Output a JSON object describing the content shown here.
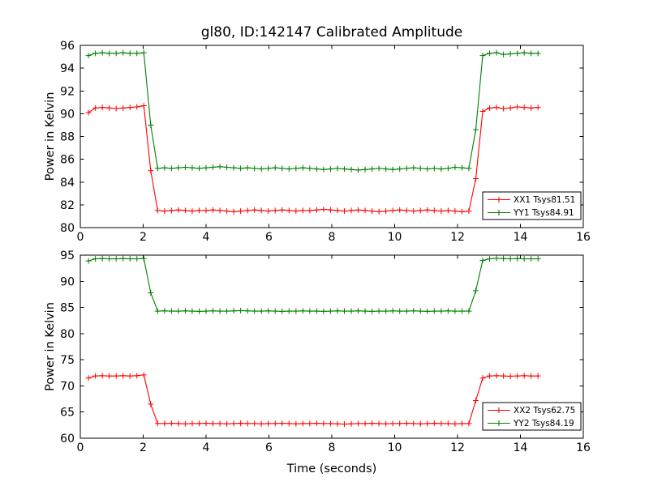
{
  "figure": {
    "background": "#ffffff",
    "frame_color": "#000000",
    "accent_red": "#ff0000",
    "accent_green": "#008000"
  },
  "chart_data": [
    {
      "type": "line",
      "title": "gl80, ID:142147 Calibrated Amplitude",
      "xlabel": "",
      "ylabel": "Power in Kelvin",
      "xlim": [
        0,
        16
      ],
      "ylim": [
        80,
        96
      ],
      "xticks": [
        0,
        2,
        4,
        6,
        8,
        10,
        12,
        14,
        16
      ],
      "yticks": [
        80,
        82,
        84,
        86,
        88,
        90,
        92,
        94,
        96
      ],
      "xtick_labels": [
        "0",
        "2",
        "4",
        "6",
        "8",
        "10",
        "12",
        "14",
        "16"
      ],
      "ytick_labels": [
        "80",
        "82",
        "84",
        "86",
        "88",
        "90",
        "92",
        "94",
        "96"
      ],
      "grid": false,
      "legend_position": "lower right",
      "x": [
        0.26,
        0.48,
        0.7,
        0.92,
        1.14,
        1.36,
        1.58,
        1.8,
        2.02,
        2.24,
        2.46,
        2.68,
        2.9,
        3.12,
        3.34,
        3.56,
        3.78,
        4,
        4.22,
        4.44,
        4.66,
        4.88,
        5.1,
        5.32,
        5.54,
        5.76,
        5.98,
        6.2,
        6.42,
        6.64,
        6.86,
        7.08,
        7.3,
        7.52,
        7.74,
        7.96,
        8.18,
        8.4,
        8.62,
        8.84,
        9.06,
        9.28,
        9.5,
        9.72,
        9.94,
        10.16,
        10.38,
        10.6,
        10.82,
        11.04,
        11.26,
        11.48,
        11.7,
        11.92,
        12.14,
        12.36,
        12.58,
        12.8,
        13.02,
        13.24,
        13.46,
        13.68,
        13.9,
        14.12,
        14.34,
        14.56
      ],
      "series": [
        {
          "id": "xx1",
          "name": "XX1 Tsys81.51",
          "color": "#ff0000",
          "marker": "+",
          "values": [
            90.1,
            90.5,
            90.55,
            90.5,
            90.45,
            90.5,
            90.55,
            90.6,
            90.7,
            85.0,
            81.5,
            81.45,
            81.5,
            81.55,
            81.5,
            81.45,
            81.5,
            81.5,
            81.55,
            81.5,
            81.45,
            81.4,
            81.45,
            81.5,
            81.55,
            81.5,
            81.45,
            81.5,
            81.55,
            81.5,
            81.45,
            81.5,
            81.5,
            81.55,
            81.6,
            81.55,
            81.5,
            81.45,
            81.5,
            81.55,
            81.5,
            81.45,
            81.4,
            81.45,
            81.5,
            81.55,
            81.5,
            81.45,
            81.5,
            81.55,
            81.5,
            81.45,
            81.5,
            81.45,
            81.4,
            81.45,
            84.3,
            90.2,
            90.5,
            90.55,
            90.45,
            90.5,
            90.6,
            90.55,
            90.5,
            90.55
          ]
        },
        {
          "id": "yy1",
          "name": "YY1 Tsys84.91",
          "color": "#008000",
          "marker": "+",
          "values": [
            95.1,
            95.3,
            95.35,
            95.3,
            95.3,
            95.35,
            95.3,
            95.3,
            95.35,
            89.0,
            85.2,
            85.25,
            85.2,
            85.25,
            85.3,
            85.25,
            85.2,
            85.25,
            85.3,
            85.35,
            85.3,
            85.25,
            85.2,
            85.25,
            85.2,
            85.15,
            85.2,
            85.25,
            85.2,
            85.15,
            85.2,
            85.25,
            85.2,
            85.15,
            85.1,
            85.15,
            85.2,
            85.15,
            85.1,
            85.05,
            85.1,
            85.15,
            85.2,
            85.15,
            85.1,
            85.15,
            85.2,
            85.25,
            85.2,
            85.15,
            85.2,
            85.15,
            85.2,
            85.3,
            85.25,
            85.2,
            88.6,
            95.1,
            95.3,
            95.35,
            95.2,
            95.25,
            95.3,
            95.35,
            95.3,
            95.3
          ]
        }
      ]
    },
    {
      "type": "line",
      "title": "",
      "xlabel": "Time (seconds)",
      "ylabel": "Power in Kelvin",
      "xlim": [
        0,
        16
      ],
      "ylim": [
        60,
        95
      ],
      "xticks": [
        0,
        2,
        4,
        6,
        8,
        10,
        12,
        14,
        16
      ],
      "yticks": [
        60,
        65,
        70,
        75,
        80,
        85,
        90,
        95
      ],
      "xtick_labels": [
        "0",
        "2",
        "4",
        "6",
        "8",
        "10",
        "12",
        "14",
        "16"
      ],
      "ytick_labels": [
        "60",
        "65",
        "70",
        "75",
        "80",
        "85",
        "90",
        "95"
      ],
      "grid": false,
      "legend_position": "lower right",
      "x": [
        0.26,
        0.48,
        0.7,
        0.92,
        1.14,
        1.36,
        1.58,
        1.8,
        2.02,
        2.24,
        2.46,
        2.68,
        2.9,
        3.12,
        3.34,
        3.56,
        3.78,
        4,
        4.22,
        4.44,
        4.66,
        4.88,
        5.1,
        5.32,
        5.54,
        5.76,
        5.98,
        6.2,
        6.42,
        6.64,
        6.86,
        7.08,
        7.3,
        7.52,
        7.74,
        7.96,
        8.18,
        8.4,
        8.62,
        8.84,
        9.06,
        9.28,
        9.5,
        9.72,
        9.94,
        10.16,
        10.38,
        10.6,
        10.82,
        11.04,
        11.26,
        11.48,
        11.7,
        11.92,
        12.14,
        12.36,
        12.58,
        12.8,
        13.02,
        13.24,
        13.46,
        13.68,
        13.9,
        14.12,
        14.34,
        14.56
      ],
      "series": [
        {
          "id": "xx2",
          "name": "XX2 Tsys62.75",
          "color": "#ff0000",
          "marker": "+",
          "values": [
            71.5,
            71.9,
            71.95,
            71.9,
            71.9,
            71.95,
            71.9,
            71.95,
            72.1,
            66.5,
            62.8,
            62.8,
            62.85,
            62.8,
            62.75,
            62.8,
            62.8,
            62.85,
            62.8,
            62.8,
            62.75,
            62.8,
            62.85,
            62.8,
            62.8,
            62.75,
            62.8,
            62.8,
            62.85,
            62.8,
            62.75,
            62.8,
            62.8,
            62.85,
            62.8,
            62.8,
            62.75,
            62.7,
            62.75,
            62.8,
            62.8,
            62.85,
            62.8,
            62.75,
            62.8,
            62.8,
            62.85,
            62.8,
            62.75,
            62.8,
            62.85,
            62.8,
            62.8,
            62.75,
            62.8,
            62.8,
            67.2,
            71.5,
            71.9,
            71.95,
            71.9,
            71.85,
            71.9,
            71.95,
            71.9,
            71.9
          ]
        },
        {
          "id": "yy2",
          "name": "YY2 Tsys84.19",
          "color": "#008000",
          "marker": "+",
          "values": [
            93.9,
            94.3,
            94.35,
            94.3,
            94.3,
            94.35,
            94.3,
            94.3,
            94.35,
            87.8,
            84.3,
            84.35,
            84.3,
            84.3,
            84.35,
            84.3,
            84.25,
            84.3,
            84.35,
            84.3,
            84.3,
            84.35,
            84.4,
            84.35,
            84.3,
            84.3,
            84.35,
            84.3,
            84.25,
            84.3,
            84.3,
            84.35,
            84.3,
            84.3,
            84.25,
            84.3,
            84.35,
            84.3,
            84.3,
            84.35,
            84.3,
            84.25,
            84.3,
            84.3,
            84.35,
            84.3,
            84.3,
            84.35,
            84.3,
            84.25,
            84.3,
            84.3,
            84.35,
            84.3,
            84.3,
            84.3,
            88.2,
            94.0,
            94.3,
            94.4,
            94.35,
            94.3,
            94.35,
            94.3,
            94.3,
            94.3
          ]
        }
      ]
    }
  ]
}
